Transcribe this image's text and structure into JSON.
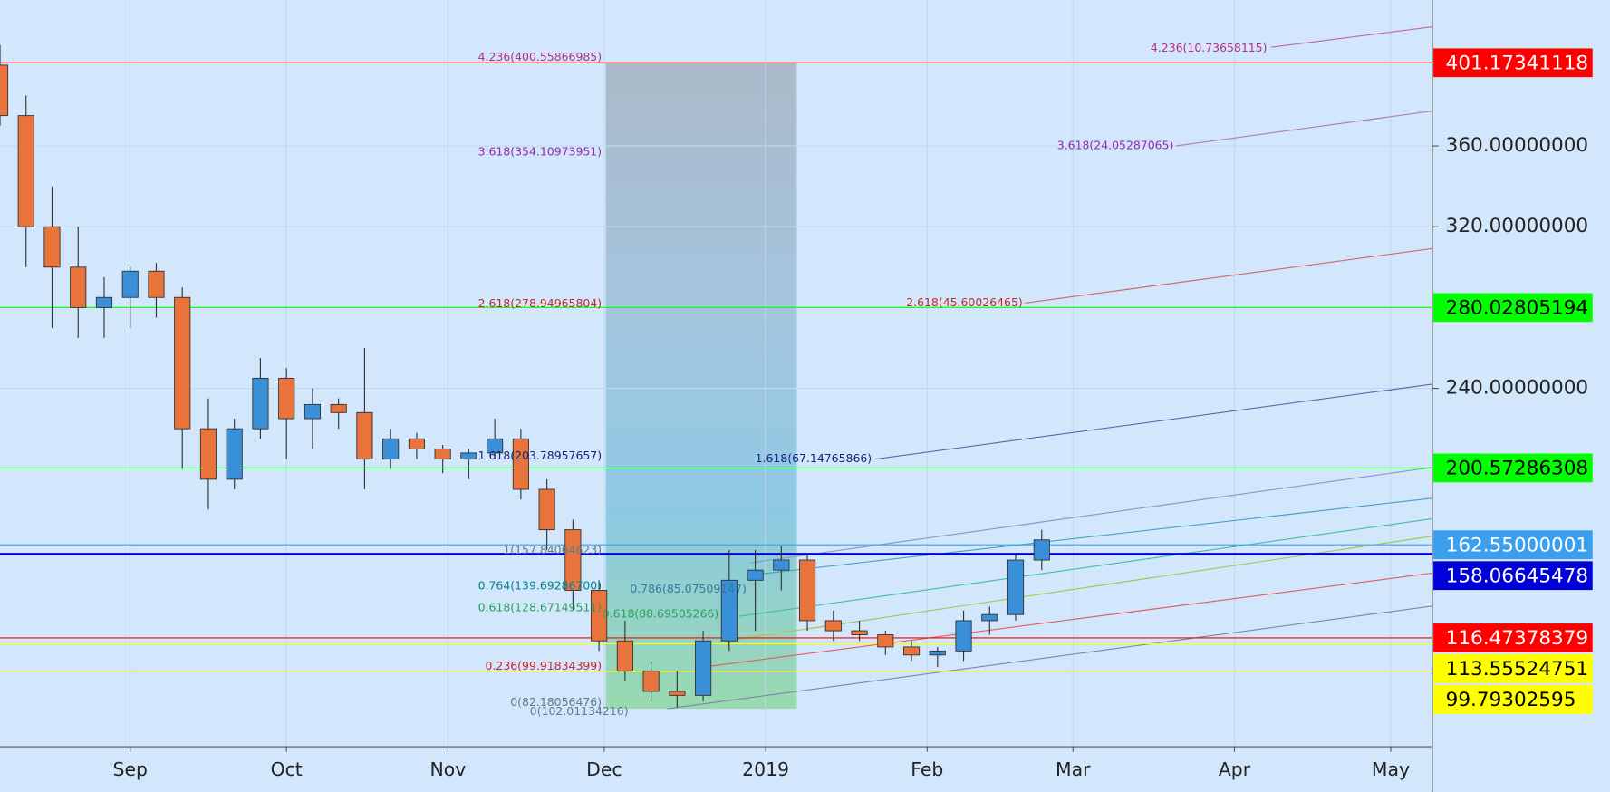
{
  "chart_data": {
    "type": "candlestick",
    "x": [
      0,
      5,
      10,
      15,
      20,
      25,
      30,
      35,
      40,
      45,
      50,
      55,
      60,
      65,
      70,
      75,
      80,
      85,
      90,
      95,
      100,
      105,
      110,
      115,
      120,
      125,
      130,
      135,
      140,
      145,
      150,
      155,
      160,
      165,
      170,
      175,
      180,
      185,
      190,
      195,
      200
    ],
    "open": [
      400,
      375,
      320,
      300,
      280,
      285,
      298,
      285,
      220,
      195,
      220,
      245,
      225,
      232,
      228,
      205,
      215,
      210,
      205,
      208,
      215,
      190,
      170,
      140,
      115,
      100,
      90,
      88,
      115,
      145,
      150,
      155,
      125,
      120,
      118,
      112,
      108,
      110,
      125,
      128,
      155
    ],
    "high": [
      410,
      385,
      340,
      320,
      295,
      300,
      302,
      290,
      235,
      225,
      255,
      250,
      240,
      235,
      260,
      220,
      218,
      212,
      210,
      225,
      220,
      195,
      175,
      145,
      125,
      105,
      100,
      120,
      160,
      160,
      162,
      158,
      130,
      125,
      120,
      115,
      112,
      130,
      132,
      158,
      170
    ],
    "low": [
      370,
      300,
      270,
      265,
      265,
      270,
      275,
      200,
      180,
      190,
      215,
      205,
      210,
      220,
      190,
      200,
      205,
      198,
      195,
      205,
      185,
      160,
      130,
      110,
      95,
      85,
      82,
      85,
      110,
      120,
      140,
      120,
      115,
      115,
      108,
      105,
      102,
      105,
      118,
      125,
      150
    ],
    "close": [
      375,
      320,
      300,
      280,
      285,
      298,
      285,
      220,
      195,
      220,
      245,
      225,
      232,
      228,
      205,
      215,
      210,
      205,
      208,
      215,
      190,
      170,
      140,
      115,
      100,
      90,
      88,
      115,
      145,
      150,
      155,
      125,
      120,
      118,
      112,
      108,
      110,
      125,
      128,
      155,
      165
    ],
    "up_color": "#3a8fd9",
    "down_color": "#e8743b",
    "xlim": [
      0,
      275
    ],
    "ylim": [
      62.6,
      432.2
    ],
    "xticks": [
      {
        "value": 25,
        "label": "Sep"
      },
      {
        "value": 55,
        "label": "Oct"
      },
      {
        "value": 86,
        "label": "Nov"
      },
      {
        "value": 116,
        "label": "Dec"
      },
      {
        "value": 147,
        "label": "2019"
      },
      {
        "value": 178,
        "label": "Feb"
      },
      {
        "value": 206,
        "label": "Mar"
      },
      {
        "value": 237,
        "label": "Apr"
      },
      {
        "value": 267,
        "label": "May"
      }
    ],
    "yticks": [
      {
        "value": 240,
        "label": "240.00000000"
      },
      {
        "value": 320,
        "label": "320.00000000"
      },
      {
        "value": 360,
        "label": "360.00000000"
      }
    ],
    "grid": true,
    "price_lines": [
      {
        "value": 401.17341118,
        "color": "#ff0000",
        "text_color": "#ffffff"
      },
      {
        "value": 280.02805194,
        "color": "#00ff00",
        "text_color": "#000000"
      },
      {
        "value": 200.57286308,
        "color": "#00ff00",
        "text_color": "#000000"
      },
      {
        "value": 162.55000001,
        "color": "#3aa0ee",
        "text_color": "#ffffff"
      },
      {
        "value": 158.06645478,
        "color": "#0000d8",
        "text_color": "#ffffff"
      },
      {
        "value": 116.47378379,
        "color": "#ff0000",
        "text_color": "#ffffff"
      },
      {
        "value": 113.55524751,
        "color": "#ffff00",
        "text_color": "#000000"
      },
      {
        "value": 99.79302595,
        "color": "#ffff00",
        "text_color": "#000000"
      }
    ],
    "fib_labels": [
      {
        "text": "4.236(400.55866985)",
        "color": "#b5337a"
      },
      {
        "text": "3.618(354.10973951)",
        "color": "#9c27b0"
      },
      {
        "text": "2.618(278.94965804)",
        "color": "#c62828"
      },
      {
        "text": "1.618(203.78957657)",
        "color": "#1a237e"
      },
      {
        "text": "1(157.84064623)",
        "color": "#607d8b"
      },
      {
        "text": "0.764(139.69286700)",
        "color": "#00838f"
      },
      {
        "text": "0.618(128.67149511)",
        "color": "#2e9e5b"
      },
      {
        "text": "0.236(99.91834399)",
        "color": "#c62828"
      },
      {
        "text": "0(82.18056476)",
        "color": "#607d8b"
      },
      {
        "text": "0(102.01134216)",
        "color": "#607d8b"
      },
      {
        "text": "4.236(10.73658115)",
        "color": "#b5337a"
      },
      {
        "text": "3.618(24.05287065)",
        "color": "#9c27b0"
      },
      {
        "text": "2.618(45.60026465)",
        "color": "#c62828"
      },
      {
        "text": "1.618(67.14765866)",
        "color": "#1a237e"
      },
      {
        "text": "0.786(85.07509147)",
        "color": "#2e7d9a"
      },
      {
        "text": "0.618(88.69505266)",
        "color": "#2e9e5b"
      }
    ]
  }
}
